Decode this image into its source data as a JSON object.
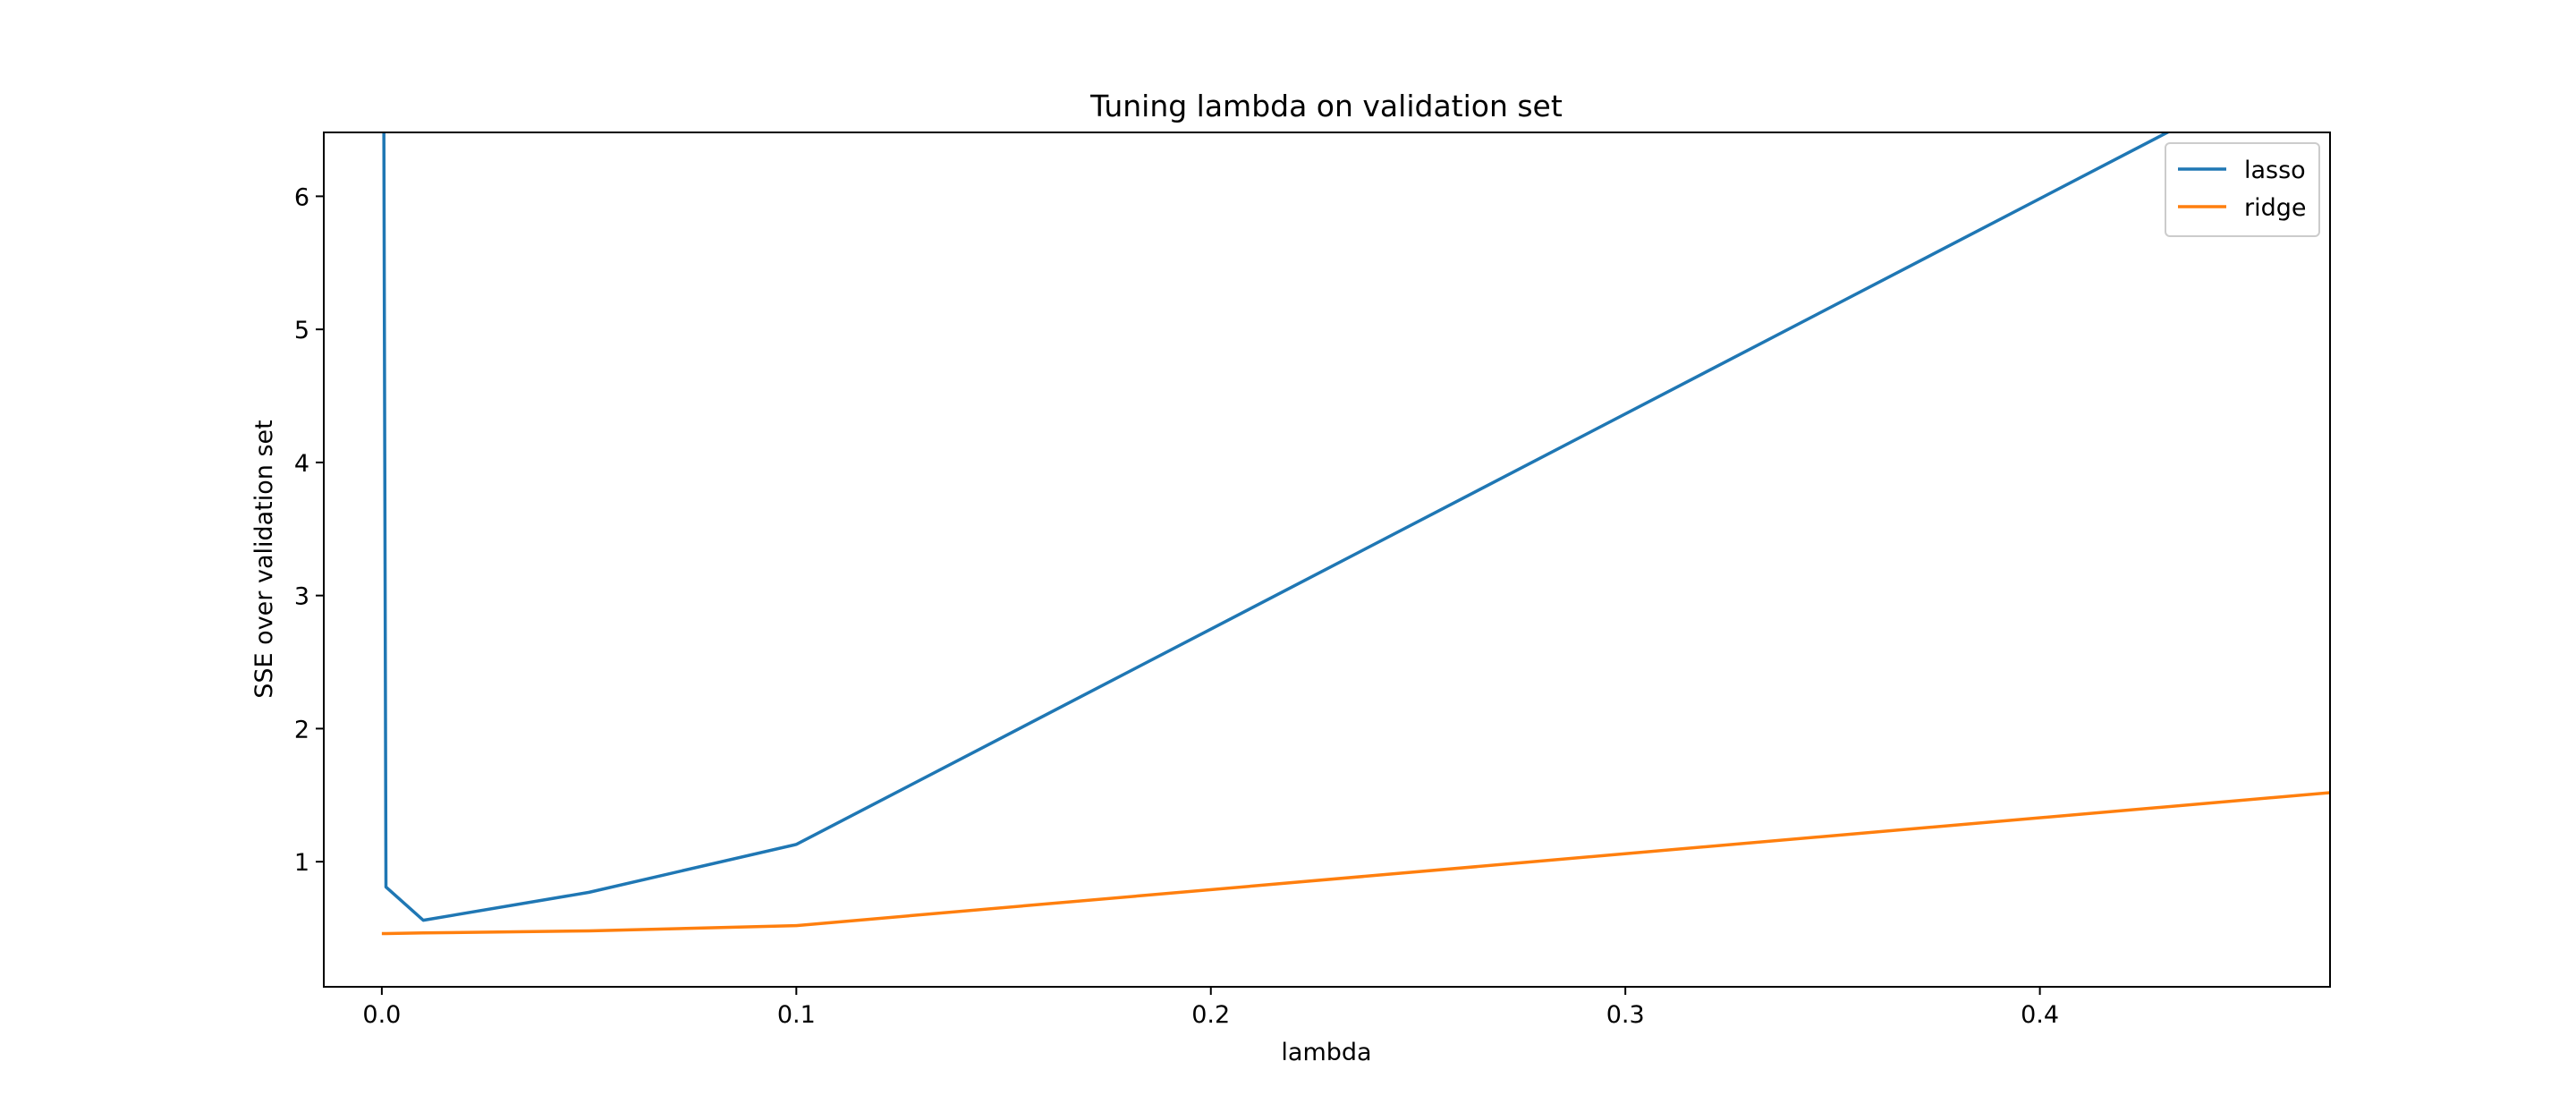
{
  "chart_data": {
    "type": "line",
    "title": "Tuning lambda on validation set",
    "xlabel": "lambda",
    "ylabel": "SSE over validation set",
    "xlim": [
      -0.014,
      0.47
    ],
    "ylim": [
      0.06,
      6.48
    ],
    "xticks": [
      0.0,
      0.1,
      0.2,
      0.3,
      0.4
    ],
    "xtick_labels": [
      "0.0",
      "0.1",
      "0.2",
      "0.3",
      "0.4"
    ],
    "yticks": [
      1,
      2,
      3,
      4,
      5,
      6
    ],
    "ytick_labels": [
      "1",
      "2",
      "3",
      "4",
      "5",
      "6"
    ],
    "grid": false,
    "legend_position": "top-right",
    "series": [
      {
        "name": "lasso",
        "color": "#1f77b4",
        "x": [
          0.0,
          0.001,
          0.01,
          0.05,
          0.1,
          0.5
        ],
        "y": [
          12.0,
          0.81,
          0.56,
          0.77,
          1.13,
          7.6
        ]
      },
      {
        "name": "ridge",
        "color": "#ff7f0e",
        "x": [
          0.0,
          0.001,
          0.01,
          0.05,
          0.1,
          0.5
        ],
        "y": [
          0.46,
          0.46,
          0.465,
          0.48,
          0.52,
          1.6
        ]
      }
    ]
  }
}
